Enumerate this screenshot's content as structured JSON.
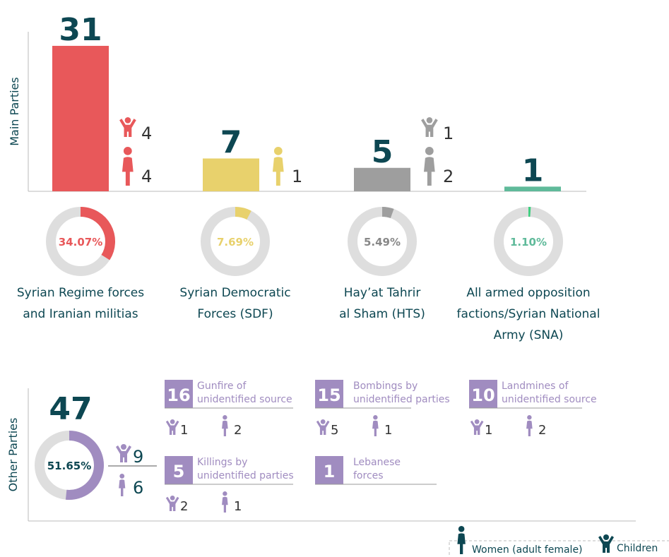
{
  "chart_data": [
    {
      "type": "bar",
      "axis_label": "Main Parties",
      "categories": [
        [
          "Syrian Regime forces",
          "and Iranian militias"
        ],
        [
          "Syrian Democratic",
          "Forces (SDF)"
        ],
        [
          "Hay’at Tahrir",
          "al Sham (HTS)"
        ],
        [
          "All armed opposition",
          "factions/Syrian National",
          "Army (SNA)"
        ]
      ],
      "values": [
        31,
        7,
        5,
        1
      ],
      "colors": [
        "#e8585a",
        "#e8d16c",
        "#9e9e9e",
        "#5fba9a"
      ],
      "share_colors": [
        "#e8585a",
        "#e8d16c",
        "#9e9e9e",
        "#3ccf7e"
      ],
      "shares": [
        34.07,
        7.69,
        5.49,
        1.1
      ],
      "share_labels": [
        "34.07%",
        "7.69%",
        "5.49%",
        "1.10%"
      ],
      "children": [
        4,
        null,
        1,
        null
      ],
      "women": [
        4,
        1,
        2,
        null
      ],
      "ylim": [
        0,
        34
      ]
    },
    {
      "type": "donut",
      "axis_label": "Other Parties",
      "total": 47,
      "share": 51.65,
      "share_label": "51.65%",
      "color": "#a08cc0",
      "children": 9,
      "women": 6,
      "items": [
        {
          "count": 16,
          "label": [
            "Gunfire of",
            "unidentified source"
          ],
          "children": 1,
          "women": 2
        },
        {
          "count": 15,
          "label": [
            "Bombings by",
            "unidentified parties"
          ],
          "children": 5,
          "women": 1
        },
        {
          "count": 10,
          "label": [
            "Landmines of",
            "unidentified source"
          ],
          "children": 1,
          "women": 2
        },
        {
          "count": 5,
          "label": [
            "Killings by",
            "unidentified parties"
          ],
          "children": 2,
          "women": 1
        },
        {
          "count": 1,
          "label": [
            "Lebanese",
            "forces"
          ],
          "children": null,
          "women": null
        }
      ]
    }
  ],
  "legend": {
    "women": "Women (adult female)",
    "children": "Children"
  }
}
